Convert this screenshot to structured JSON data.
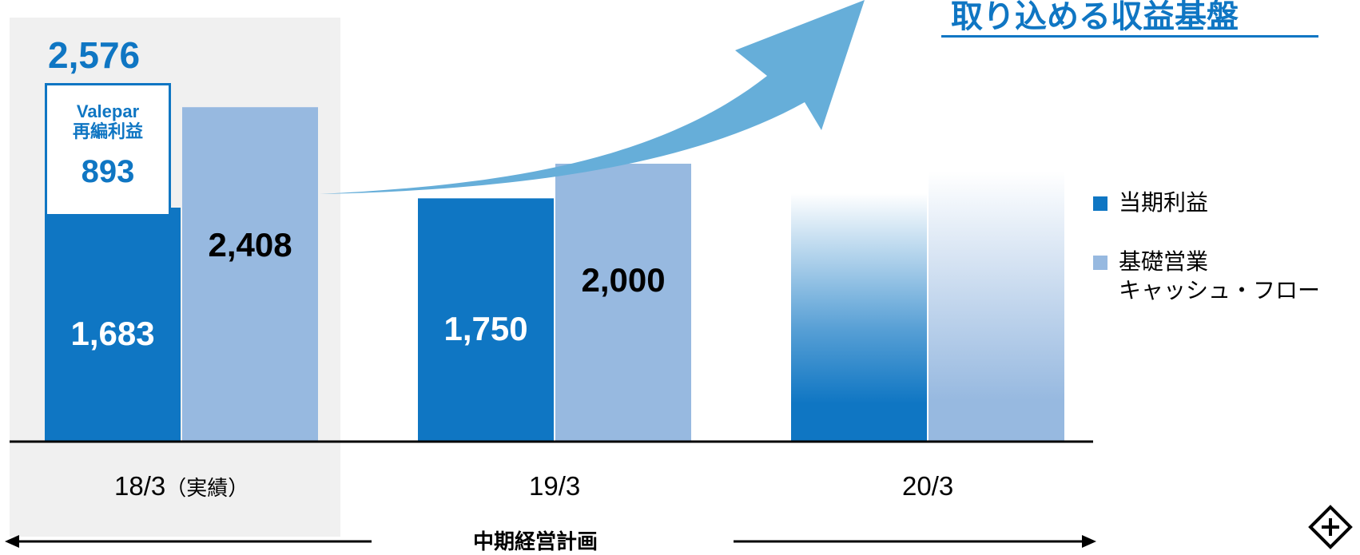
{
  "headline": "取り込める収益基盤",
  "colors": {
    "net_income": "#0f76c3",
    "basic_operating_cf": "#97b9e0",
    "highlight_bg": "#f0f0f0",
    "arrow": "#66aed9"
  },
  "chart_data": {
    "type": "bar",
    "categories": [
      "18/3（実績）",
      "19/3",
      "20/3"
    ],
    "category_labels": [
      {
        "main": "18/3",
        "note": "（実績）"
      },
      {
        "main": "19/3",
        "note": ""
      },
      {
        "main": "20/3",
        "note": ""
      }
    ],
    "series": [
      {
        "name": "当期利益",
        "values": [
          1683,
          1750,
          null
        ],
        "labels": [
          "1,683",
          "1,750",
          ""
        ]
      },
      {
        "name": "基礎営業\nキャッシュ・フロー",
        "values": [
          2408,
          2000,
          null
        ],
        "labels": [
          "2,408",
          "2,000",
          ""
        ]
      }
    ],
    "stacked_addition": {
      "category": "18/3（実績）",
      "name": "Valepar",
      "sub": "再編利益",
      "value": 893,
      "value_label": "893",
      "total": 2576,
      "total_label": "2,576"
    },
    "legend": {
      "items": [
        {
          "label": "当期利益",
          "color": "#0f76c3"
        },
        {
          "label_lines": [
            "基礎営業",
            "キャッシュ・フロー"
          ],
          "color": "#97b9e0"
        }
      ],
      "placement": "right"
    },
    "grid": false,
    "ylim": [
      0,
      2900
    ],
    "period_label": "中期経営計画"
  }
}
